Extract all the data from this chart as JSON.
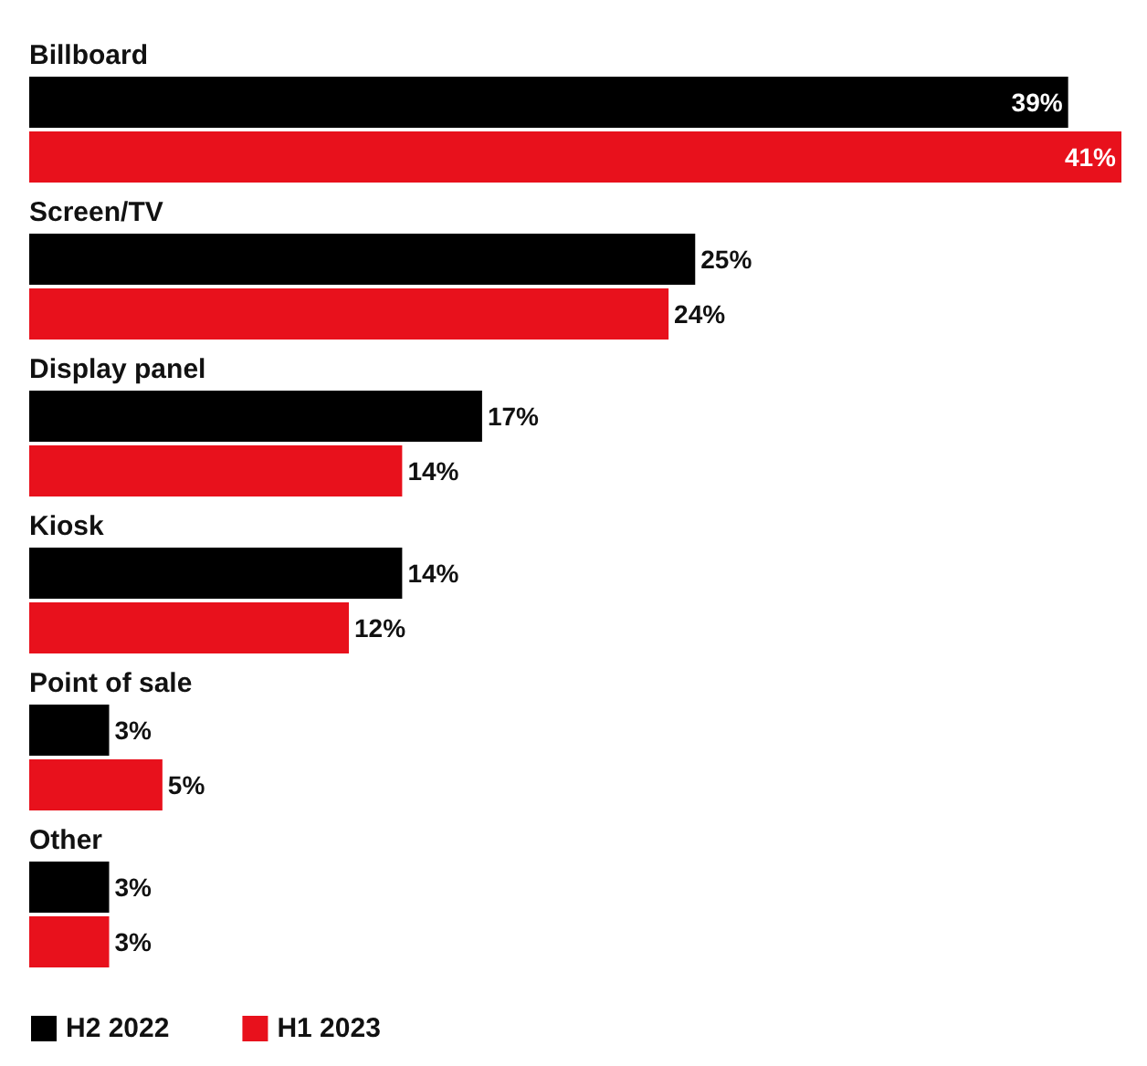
{
  "chart_data": {
    "type": "bar",
    "orientation": "horizontal",
    "categories": [
      "Billboard",
      "Screen/TV",
      "Display panel",
      "Kiosk",
      "Point of sale",
      "Other"
    ],
    "series": [
      {
        "name": "H2 2022",
        "color": "#000000",
        "values": [
          39,
          25,
          17,
          14,
          3,
          3
        ],
        "value_labels": [
          "39%",
          "25%",
          "17%",
          "14%",
          "3%",
          "3%"
        ]
      },
      {
        "name": "H1 2023",
        "color": "#e8111c",
        "values": [
          41,
          24,
          14,
          12,
          5,
          3
        ],
        "value_labels": [
          "41%",
          "24%",
          "14%",
          "12%",
          "5%",
          "3%"
        ]
      }
    ],
    "legend": "bottom left"
  }
}
